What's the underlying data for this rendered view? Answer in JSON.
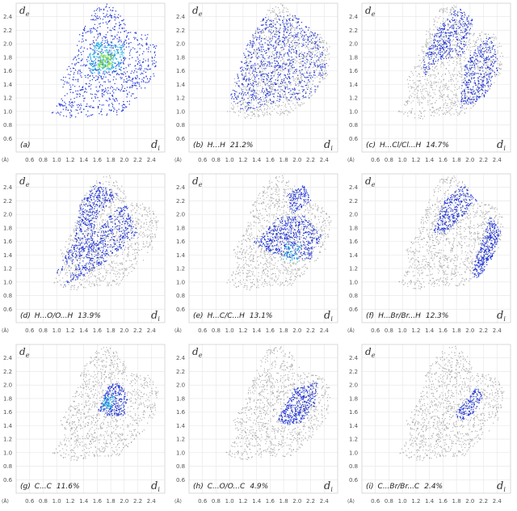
{
  "axes": {
    "de_label": "d",
    "de_sub": "e",
    "di_label": "d",
    "di_sub": "i",
    "unit": "(Å)",
    "y_ticks": [
      "2.4",
      "2.2",
      "2.0",
      "1.8",
      "1.6",
      "1.4",
      "1.2",
      "1.0",
      "0.8",
      "0.6"
    ],
    "x_ticks": [
      "0.6",
      "0.8",
      "1.0",
      "1.2",
      "1.4",
      "1.6",
      "1.8",
      "2.0",
      "2.2",
      "2.4"
    ],
    "range": [
      0.4,
      2.6
    ]
  },
  "colors": {
    "background_points": "#a9a9a9",
    "contact_points": "#1a2fd6",
    "dense": "#1fb3e6",
    "very_dense": "#7be04a"
  },
  "chart_data": [
    {
      "type": "scatter",
      "label": "(a)",
      "title": ""
    },
    {
      "type": "scatter",
      "label": "(b)",
      "title": "H...H",
      "percent": "21.2%"
    },
    {
      "type": "scatter",
      "label": "(c)",
      "title": "H...Cl/Cl...H",
      "percent": "14.7%"
    },
    {
      "type": "scatter",
      "label": "(d)",
      "title": "H...O/O...H",
      "percent": "13.9%"
    },
    {
      "type": "scatter",
      "label": "(e)",
      "title": "H...C/C...H",
      "percent": "13.1%"
    },
    {
      "type": "scatter",
      "label": "(f)",
      "title": "H...Br/Br...H",
      "percent": "12.3%"
    },
    {
      "type": "scatter",
      "label": "(g)",
      "title": "C...C",
      "percent": "11.6%"
    },
    {
      "type": "scatter",
      "label": "(h)",
      "title": "C...O/O...C",
      "percent": "4.9%"
    },
    {
      "type": "scatter",
      "label": "(i)",
      "title": "C...Br/Br...C",
      "percent": "2.4%"
    }
  ]
}
